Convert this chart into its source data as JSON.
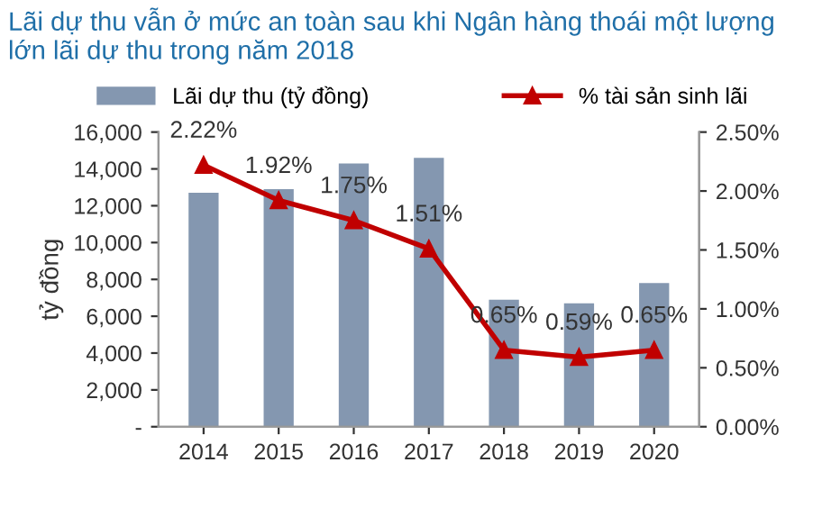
{
  "chart_data": {
    "type": "bar",
    "title": "Lãi dự thu vẫn ở mức an toàn sau khi Ngân hàng thoái một lượng lớn lãi dự thu trong năm 2018",
    "ylabel": "tỷ đồng",
    "categories": [
      "2014",
      "2015",
      "2016",
      "2017",
      "2018",
      "2019",
      "2020"
    ],
    "series": [
      {
        "name": "Lãi dự thu (tỷ đồng)",
        "color": "#8497b0",
        "values": [
          12700,
          12900,
          14300,
          14600,
          6900,
          6700,
          7800
        ]
      },
      {
        "name": "% tài sản sinh lãi",
        "type": "line",
        "axis": "y2",
        "color": "#c00000",
        "marker": "triangle",
        "values": [
          2.22,
          1.92,
          1.75,
          1.51,
          0.65,
          0.59,
          0.65
        ],
        "value_labels": [
          "2.22%",
          "1.92%",
          "1.75%",
          "1.51%",
          "0.65%",
          "0.59%",
          "0.65%"
        ]
      }
    ],
    "ylim": [
      0,
      16000
    ],
    "yticks": [
      {
        "value": 0,
        "label": "-"
      },
      {
        "value": 2000,
        "label": "2,000"
      },
      {
        "value": 4000,
        "label": "4,000"
      },
      {
        "value": 6000,
        "label": "6,000"
      },
      {
        "value": 8000,
        "label": "8,000"
      },
      {
        "value": 10000,
        "label": "10,000"
      },
      {
        "value": 12000,
        "label": "12,000"
      },
      {
        "value": 14000,
        "label": "14,000"
      },
      {
        "value": 16000,
        "label": "16,000"
      }
    ],
    "y2lim": [
      0,
      2.5
    ],
    "y2ticks": [
      {
        "value": 0,
        "label": "0.00%"
      },
      {
        "value": 0.5,
        "label": "0.50%"
      },
      {
        "value": 1.0,
        "label": "1.00%"
      },
      {
        "value": 1.5,
        "label": "1.50%"
      },
      {
        "value": 2.0,
        "label": "2.00%"
      },
      {
        "value": 2.5,
        "label": "2.50%"
      }
    ],
    "grid": false,
    "legend": "top"
  }
}
